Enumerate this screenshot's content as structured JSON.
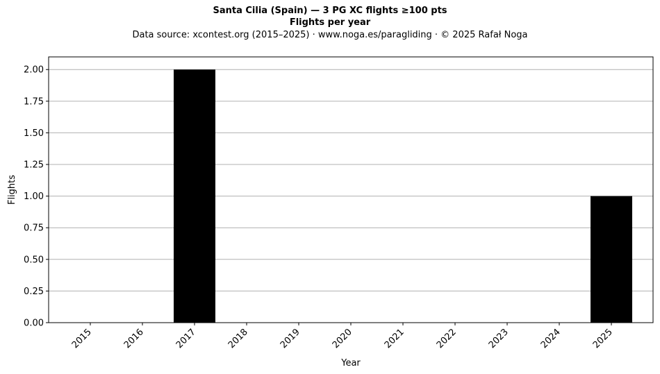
{
  "chart_data": {
    "type": "bar",
    "title": "Santa Cilia (Spain)  —  3 PG XC flights ≥100 pts",
    "subtitle": "Flights per year",
    "source": "Data source: xcontest.org (2015–2025)  ·  www.noga.es/paragliding  ·  © 2025 Rafał Noga",
    "xlabel": "Year",
    "ylabel": "Flights",
    "categories": [
      "2015",
      "2016",
      "2017",
      "2018",
      "2019",
      "2020",
      "2021",
      "2022",
      "2023",
      "2024",
      "2025"
    ],
    "values": [
      0,
      0,
      2,
      0,
      0,
      0,
      0,
      0,
      0,
      0,
      1
    ],
    "ylim": [
      0,
      2.1
    ],
    "yticks": [
      "0.00",
      "0.25",
      "0.50",
      "0.75",
      "1.00",
      "1.25",
      "1.50",
      "1.75",
      "2.00"
    ],
    "grid": "horizontal",
    "bar_color": "#000000",
    "grid_color": "#b0b0b0"
  }
}
